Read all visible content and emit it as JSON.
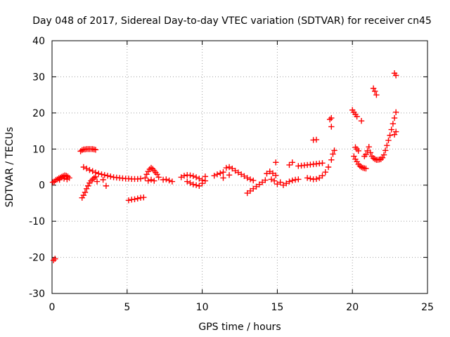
{
  "chart_data": {
    "type": "scatter",
    "title": "Day 048 of 2017, Sidereal Day-to-day VTEC variation (SDTVAR) for receiver cn45",
    "xlabel": "GPS time / hours",
    "ylabel": "SDTVAR / TECUs",
    "xlim": [
      0,
      25
    ],
    "ylim": [
      -30,
      40
    ],
    "x_ticks": [
      "0",
      "5",
      "10",
      "15",
      "20",
      "25"
    ],
    "y_ticks": [
      "-30",
      "-20",
      "-10",
      "0",
      "10",
      "20",
      "30",
      "40"
    ],
    "grid": true,
    "legend": "none",
    "marker": "plus",
    "color": "#ff0000",
    "series": [
      {
        "points": [
          [
            0.05,
            0.8
          ],
          [
            0.15,
            1.0
          ],
          [
            0.25,
            1.4
          ],
          [
            0.35,
            1.6
          ],
          [
            0.45,
            1.9
          ],
          [
            0.55,
            2.1
          ],
          [
            0.65,
            2.3
          ],
          [
            0.75,
            2.5
          ],
          [
            0.85,
            2.7
          ],
          [
            0.95,
            2.6
          ],
          [
            1.05,
            2.4
          ],
          [
            1.15,
            2.0
          ],
          [
            0.5,
            1.5
          ],
          [
            0.8,
            1.8
          ],
          [
            1.0,
            1.6
          ],
          [
            0.1,
            -20.8
          ],
          [
            0.2,
            -20.4
          ],
          [
            1.9,
            9.4
          ],
          [
            2.0,
            9.7
          ],
          [
            2.1,
            9.9
          ],
          [
            2.2,
            9.9
          ],
          [
            2.3,
            10.0
          ],
          [
            2.4,
            10.0
          ],
          [
            2.5,
            10.0
          ],
          [
            2.6,
            10.0
          ],
          [
            2.7,
            10.0
          ],
          [
            2.8,
            9.9
          ],
          [
            2.9,
            9.8
          ],
          [
            2.0,
            -3.5
          ],
          [
            2.1,
            -2.8
          ],
          [
            2.2,
            -2.0
          ],
          [
            2.3,
            -1.0
          ],
          [
            2.4,
            -0.2
          ],
          [
            2.5,
            0.6
          ],
          [
            2.6,
            1.2
          ],
          [
            2.7,
            1.6
          ],
          [
            2.8,
            2.0
          ],
          [
            2.9,
            2.3
          ],
          [
            2.1,
            5.0
          ],
          [
            2.3,
            4.6
          ],
          [
            2.5,
            4.2
          ],
          [
            2.7,
            3.9
          ],
          [
            2.9,
            3.5
          ],
          [
            3.1,
            3.2
          ],
          [
            3.3,
            3.0
          ],
          [
            3.5,
            2.8
          ],
          [
            3.7,
            2.6
          ],
          [
            3.9,
            2.4
          ],
          [
            4.1,
            2.2
          ],
          [
            4.3,
            2.1
          ],
          [
            4.5,
            2.0
          ],
          [
            4.7,
            1.9
          ],
          [
            4.9,
            1.8
          ],
          [
            5.1,
            1.8
          ],
          [
            5.3,
            1.7
          ],
          [
            5.5,
            1.7
          ],
          [
            5.7,
            1.7
          ],
          [
            5.9,
            1.8
          ],
          [
            3.6,
            -0.2
          ],
          [
            3.0,
            1.0
          ],
          [
            3.4,
            1.5
          ],
          [
            5.1,
            -4.2
          ],
          [
            5.3,
            -4.0
          ],
          [
            5.5,
            -3.9
          ],
          [
            5.7,
            -3.7
          ],
          [
            5.9,
            -3.5
          ],
          [
            6.1,
            -3.4
          ],
          [
            6.2,
            2.0
          ],
          [
            6.3,
            3.0
          ],
          [
            6.4,
            3.8
          ],
          [
            6.5,
            4.4
          ],
          [
            6.6,
            4.8
          ],
          [
            6.7,
            4.5
          ],
          [
            6.8,
            4.0
          ],
          [
            6.9,
            3.5
          ],
          [
            7.0,
            3.0
          ],
          [
            7.1,
            2.2
          ],
          [
            6.4,
            1.2
          ],
          [
            6.6,
            1.5
          ],
          [
            6.8,
            1.2
          ],
          [
            7.4,
            1.5
          ],
          [
            7.6,
            1.6
          ],
          [
            7.8,
            1.3
          ],
          [
            8.0,
            1.0
          ],
          [
            8.6,
            2.2
          ],
          [
            8.8,
            2.6
          ],
          [
            9.0,
            2.8
          ],
          [
            9.2,
            2.7
          ],
          [
            9.4,
            2.5
          ],
          [
            9.6,
            2.2
          ],
          [
            9.8,
            1.8
          ],
          [
            10.0,
            1.4
          ],
          [
            10.2,
            1.2
          ],
          [
            9.0,
            1.0
          ],
          [
            9.2,
            0.6
          ],
          [
            9.4,
            0.2
          ],
          [
            9.6,
            0.0
          ],
          [
            9.8,
            -0.2
          ],
          [
            10.0,
            0.5
          ],
          [
            10.2,
            2.4
          ],
          [
            10.8,
            2.6
          ],
          [
            11.0,
            3.0
          ],
          [
            11.2,
            3.3
          ],
          [
            11.4,
            3.6
          ],
          [
            11.6,
            4.8
          ],
          [
            11.8,
            5.0
          ],
          [
            12.0,
            4.6
          ],
          [
            12.2,
            4.0
          ],
          [
            12.4,
            3.5
          ],
          [
            12.6,
            3.0
          ],
          [
            12.8,
            2.5
          ],
          [
            13.0,
            2.0
          ],
          [
            13.2,
            1.6
          ],
          [
            13.4,
            1.3
          ],
          [
            11.4,
            2.0
          ],
          [
            11.8,
            2.8
          ],
          [
            13.0,
            -2.2
          ],
          [
            13.2,
            -1.6
          ],
          [
            13.4,
            -1.0
          ],
          [
            13.6,
            -0.4
          ],
          [
            13.8,
            0.2
          ],
          [
            14.0,
            0.8
          ],
          [
            14.2,
            1.4
          ],
          [
            14.3,
            3.2
          ],
          [
            14.5,
            3.8
          ],
          [
            14.7,
            3.3
          ],
          [
            14.9,
            2.7
          ],
          [
            14.6,
            1.6
          ],
          [
            14.8,
            1.2
          ],
          [
            14.9,
            6.3
          ],
          [
            15.0,
            0.3
          ],
          [
            15.2,
            0.8
          ],
          [
            15.4,
            0.0
          ],
          [
            15.6,
            0.5
          ],
          [
            15.8,
            1.0
          ],
          [
            16.0,
            1.3
          ],
          [
            16.2,
            1.5
          ],
          [
            16.4,
            1.6
          ],
          [
            15.8,
            5.6
          ],
          [
            16.0,
            6.3
          ],
          [
            16.4,
            5.3
          ],
          [
            16.6,
            5.4
          ],
          [
            16.8,
            5.5
          ],
          [
            17.0,
            5.6
          ],
          [
            17.2,
            5.7
          ],
          [
            17.4,
            5.8
          ],
          [
            17.6,
            5.9
          ],
          [
            17.8,
            6.0
          ],
          [
            18.0,
            6.1
          ],
          [
            17.0,
            2.0
          ],
          [
            17.2,
            1.8
          ],
          [
            17.4,
            1.6
          ],
          [
            17.6,
            1.7
          ],
          [
            17.8,
            2.0
          ],
          [
            18.0,
            2.6
          ],
          [
            18.2,
            3.6
          ],
          [
            18.4,
            5.0
          ],
          [
            18.6,
            7.0
          ],
          [
            18.7,
            8.6
          ],
          [
            18.8,
            9.6
          ],
          [
            17.4,
            12.5
          ],
          [
            17.6,
            12.6
          ],
          [
            18.5,
            18.2
          ],
          [
            18.6,
            18.6
          ],
          [
            18.6,
            16.2
          ],
          [
            20.0,
            20.8
          ],
          [
            20.1,
            20.2
          ],
          [
            20.2,
            19.6
          ],
          [
            20.3,
            19.0
          ],
          [
            20.6,
            17.8
          ],
          [
            20.1,
            8.0
          ],
          [
            20.2,
            7.2
          ],
          [
            20.3,
            6.5
          ],
          [
            20.4,
            5.8
          ],
          [
            20.5,
            5.3
          ],
          [
            20.6,
            5.0
          ],
          [
            20.7,
            4.8
          ],
          [
            20.8,
            4.7
          ],
          [
            20.9,
            4.6
          ],
          [
            20.2,
            10.5
          ],
          [
            20.3,
            10.0
          ],
          [
            20.4,
            9.5
          ],
          [
            20.8,
            8.0
          ],
          [
            20.9,
            8.5
          ],
          [
            21.0,
            9.5
          ],
          [
            21.1,
            10.6
          ],
          [
            21.2,
            9.0
          ],
          [
            21.3,
            8.0
          ],
          [
            21.4,
            7.5
          ],
          [
            21.5,
            7.2
          ],
          [
            21.6,
            7.0
          ],
          [
            21.7,
            7.0
          ],
          [
            21.8,
            7.1
          ],
          [
            21.9,
            7.2
          ],
          [
            22.0,
            7.6
          ],
          [
            22.1,
            8.4
          ],
          [
            22.2,
            9.6
          ],
          [
            22.3,
            11.0
          ],
          [
            22.4,
            12.4
          ],
          [
            22.5,
            13.8
          ],
          [
            22.6,
            15.4
          ],
          [
            22.7,
            17.0
          ],
          [
            22.8,
            18.6
          ],
          [
            22.9,
            20.2
          ],
          [
            21.4,
            26.8
          ],
          [
            21.5,
            26.0
          ],
          [
            21.6,
            25.0
          ],
          [
            22.8,
            14.0
          ],
          [
            22.9,
            14.8
          ],
          [
            22.8,
            31.0
          ],
          [
            22.9,
            30.4
          ]
        ]
      }
    ]
  }
}
